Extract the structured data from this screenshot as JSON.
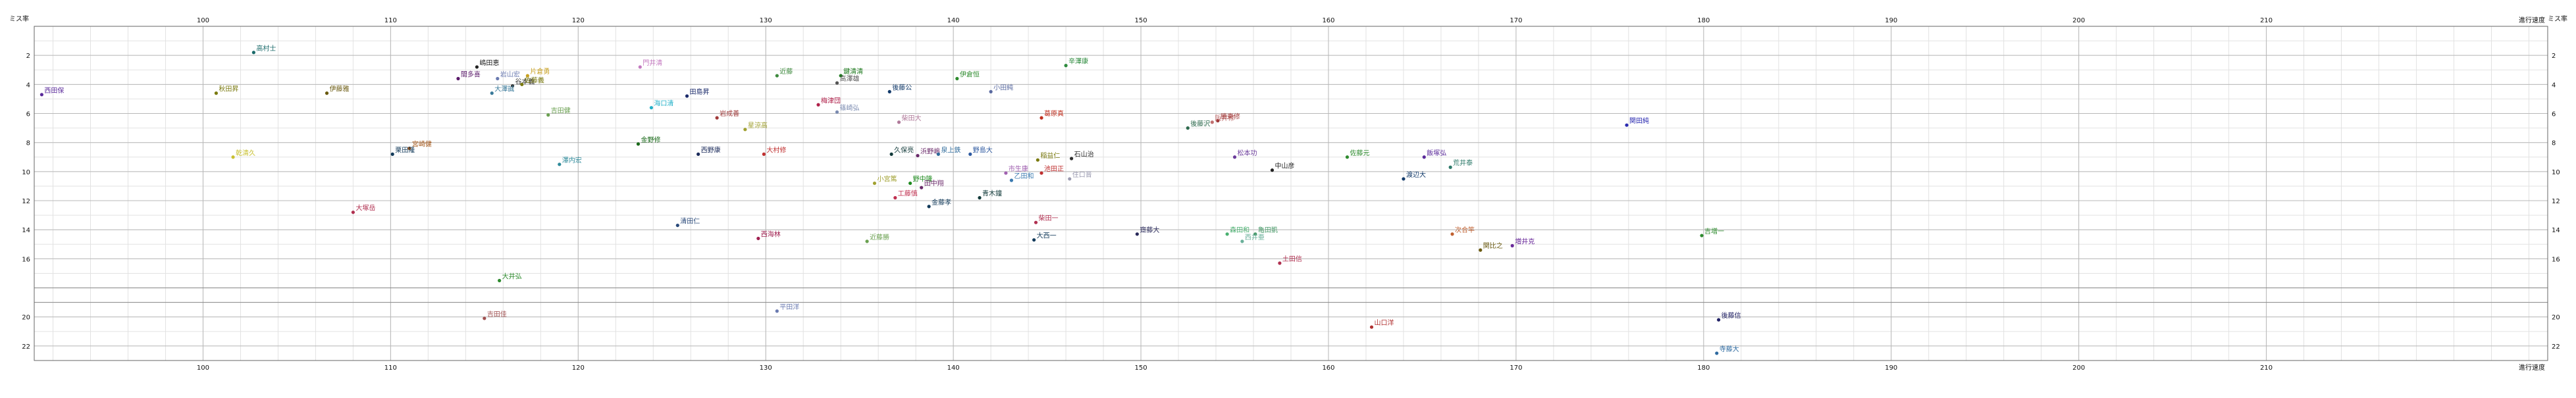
{
  "chart_data": {
    "type": "scatter",
    "x_axis_label": "進行速度",
    "y_axis_label": "ミス率",
    "xlim": [
      91,
      225
    ],
    "ylim": [
      23,
      0
    ],
    "x_ticks": [
      100,
      110,
      120,
      130,
      140,
      150,
      160,
      170,
      180,
      190,
      200,
      210
    ],
    "y_ticks": [
      2,
      4,
      6,
      8,
      10,
      12,
      14,
      16,
      20,
      22
    ],
    "y_break": {
      "lower": 16,
      "upper": 20
    },
    "x_minor_step": 2,
    "y_minor_step": 1,
    "grid": true,
    "points": [
      {
        "name": "高村士",
        "x": 102.7,
        "y": 1.8,
        "color": "#1a6a6a"
      },
      {
        "name": "嶋田恵",
        "x": 114.6,
        "y": 2.8,
        "color": "#222222"
      },
      {
        "name": "門井清",
        "x": 123.3,
        "y": 2.8,
        "color": "#c47ac0"
      },
      {
        "name": "辛澤康",
        "x": 146.0,
        "y": 2.7,
        "color": "#2e8b3e"
      },
      {
        "name": "間多喜",
        "x": 113.6,
        "y": 3.6,
        "color": "#5a1a6a"
      },
      {
        "name": "岩山宏",
        "x": 115.7,
        "y": 3.6,
        "color": "#6a7ab0"
      },
      {
        "name": "片倉勇",
        "x": 117.3,
        "y": 3.4,
        "color": "#c8a020"
      },
      {
        "name": "谷本義",
        "x": 116.5,
        "y": 4.1,
        "color": "#333333"
      },
      {
        "name": "佐藤義",
        "x": 117.0,
        "y": 4.0,
        "color": "#7a7a10"
      },
      {
        "name": "大澤誠",
        "x": 115.4,
        "y": 4.6,
        "color": "#3a7a9a"
      },
      {
        "name": "近藤",
        "x": 130.6,
        "y": 3.4,
        "color": "#3e8a3e"
      },
      {
        "name": "鍵清清",
        "x": 134.0,
        "y": 3.4,
        "color": "#1e7a1e"
      },
      {
        "name": "高澤雄",
        "x": 133.8,
        "y": 3.9,
        "color": "#555555"
      },
      {
        "name": "伊倉恒",
        "x": 140.2,
        "y": 3.6,
        "color": "#2e8b2e"
      },
      {
        "name": "後藤公",
        "x": 136.6,
        "y": 4.5,
        "color": "#123a6a"
      },
      {
        "name": "小田純",
        "x": 142.0,
        "y": 4.5,
        "color": "#5a6aa0"
      },
      {
        "name": "西田保",
        "x": 91.4,
        "y": 4.7,
        "color": "#5a2a9a"
      },
      {
        "name": "秋田昇",
        "x": 100.7,
        "y": 4.6,
        "color": "#7a7a10"
      },
      {
        "name": "伊藤雅",
        "x": 106.6,
        "y": 4.6,
        "color": "#6a5a10"
      },
      {
        "name": "田島昇",
        "x": 125.8,
        "y": 4.8,
        "color": "#1a2a6a"
      },
      {
        "name": "海口清",
        "x": 123.9,
        "y": 5.6,
        "color": "#22b0c8"
      },
      {
        "name": "梅津団",
        "x": 132.8,
        "y": 5.4,
        "color": "#b0204a"
      },
      {
        "name": "篠崎弘",
        "x": 133.8,
        "y": 5.9,
        "color": "#7a8ab0"
      },
      {
        "name": "吉田健",
        "x": 118.4,
        "y": 6.1,
        "color": "#6aa050"
      },
      {
        "name": "岩成善",
        "x": 127.4,
        "y": 6.3,
        "color": "#a03a3a"
      },
      {
        "name": "星涼高",
        "x": 128.9,
        "y": 7.1,
        "color": "#a0a030"
      },
      {
        "name": "柴田大",
        "x": 137.1,
        "y": 6.6,
        "color": "#b07a9a"
      },
      {
        "name": "葛原真",
        "x": 144.7,
        "y": 6.3,
        "color": "#c03020"
      },
      {
        "name": "後藤沢",
        "x": 152.5,
        "y": 7.0,
        "color": "#2e6a4e"
      },
      {
        "name": "阪井修",
        "x": 153.8,
        "y": 6.6,
        "color": "#c07070"
      },
      {
        "name": "勝東修",
        "x": 154.1,
        "y": 6.5,
        "color": "#a03a3a"
      },
      {
        "name": "関田純",
        "x": 175.9,
        "y": 6.8,
        "color": "#2a2ab0"
      },
      {
        "name": "宮崎健",
        "x": 111.0,
        "y": 8.4,
        "color": "#a05010"
      },
      {
        "name": "栗田隆",
        "x": 110.1,
        "y": 8.8,
        "color": "#123a5a"
      },
      {
        "name": "金野修",
        "x": 123.2,
        "y": 8.1,
        "color": "#1a6a1a"
      },
      {
        "name": "西野康",
        "x": 126.4,
        "y": 8.8,
        "color": "#1a2a5a"
      },
      {
        "name": "大村修",
        "x": 129.9,
        "y": 8.8,
        "color": "#c03030"
      },
      {
        "name": "久保亮",
        "x": 136.7,
        "y": 8.8,
        "color": "#123a3a"
      },
      {
        "name": "浜野嶋",
        "x": 138.1,
        "y": 8.9,
        "color": "#6a2a6a"
      },
      {
        "name": "泉上鉄",
        "x": 139.2,
        "y": 8.8,
        "color": "#2e6a9a"
      },
      {
        "name": "野島大",
        "x": 140.9,
        "y": 8.8,
        "color": "#2e5aa0"
      },
      {
        "name": "石山治",
        "x": 146.3,
        "y": 9.1,
        "color": "#2e2e2e"
      },
      {
        "name": "稲益仁",
        "x": 144.5,
        "y": 9.2,
        "color": "#7a7a10"
      },
      {
        "name": "松本功",
        "x": 155.0,
        "y": 9.0,
        "color": "#6a3a9a"
      },
      {
        "name": "佐藤元",
        "x": 161.0,
        "y": 9.0,
        "color": "#2e8b2e"
      },
      {
        "name": "飯塚弘",
        "x": 165.1,
        "y": 9.0,
        "color": "#5a2a9a"
      },
      {
        "name": "乾清久",
        "x": 101.6,
        "y": 9.0,
        "color": "#c8c030"
      },
      {
        "name": "澤内宏",
        "x": 119.0,
        "y": 9.5,
        "color": "#2e8a9a"
      },
      {
        "name": "市生康",
        "x": 142.8,
        "y": 10.1,
        "color": "#a060b0"
      },
      {
        "name": "池田正",
        "x": 144.7,
        "y": 10.1,
        "color": "#c03030"
      },
      {
        "name": "乙田和",
        "x": 143.1,
        "y": 10.6,
        "color": "#3a7ab0"
      },
      {
        "name": "住口晋",
        "x": 146.2,
        "y": 10.5,
        "color": "#9a9ab0"
      },
      {
        "name": "中山彦",
        "x": 157.0,
        "y": 9.9,
        "color": "#222222"
      },
      {
        "name": "渡辺大",
        "x": 164.0,
        "y": 10.5,
        "color": "#123a6a"
      },
      {
        "name": "荒井泰",
        "x": 166.5,
        "y": 9.7,
        "color": "#2e7a6a"
      },
      {
        "name": "小宮篤",
        "x": 135.8,
        "y": 10.8,
        "color": "#a0a030"
      },
      {
        "name": "野中隆",
        "x": 137.7,
        "y": 10.8,
        "color": "#1e8a1e"
      },
      {
        "name": "田中翔",
        "x": 138.3,
        "y": 11.1,
        "color": "#6a2a6a"
      },
      {
        "name": "工藤慎",
        "x": 136.9,
        "y": 11.8,
        "color": "#c03050"
      },
      {
        "name": "金藤孝",
        "x": 138.7,
        "y": 12.4,
        "color": "#123a5a"
      },
      {
        "name": "青木鐘",
        "x": 141.4,
        "y": 11.8,
        "color": "#123a3a"
      },
      {
        "name": "大塚岳",
        "x": 108.0,
        "y": 12.8,
        "color": "#b03050"
      },
      {
        "name": "清田仁",
        "x": 125.3,
        "y": 13.7,
        "color": "#2a4a7a"
      },
      {
        "name": "柴田一",
        "x": 144.4,
        "y": 13.5,
        "color": "#b03050"
      },
      {
        "name": "大西一",
        "x": 144.3,
        "y": 14.7,
        "color": "#123a5a"
      },
      {
        "name": "西海林",
        "x": 129.6,
        "y": 14.6,
        "color": "#a02050"
      },
      {
        "name": "近藤勝",
        "x": 135.4,
        "y": 14.8,
        "color": "#6aa050"
      },
      {
        "name": "齋藤大",
        "x": 149.8,
        "y": 14.3,
        "color": "#2a2a5a"
      },
      {
        "name": "森田和",
        "x": 154.6,
        "y": 14.3,
        "color": "#4ab070"
      },
      {
        "name": "亀田凱",
        "x": 156.1,
        "y": 14.3,
        "color": "#4a9a6a"
      },
      {
        "name": "西井亜",
        "x": 155.4,
        "y": 14.8,
        "color": "#6ab09a"
      },
      {
        "name": "次合竿",
        "x": 166.6,
        "y": 14.3,
        "color": "#c06030"
      },
      {
        "name": "増井克",
        "x": 169.8,
        "y": 15.1,
        "color": "#6a2a9a"
      },
      {
        "name": "関比之",
        "x": 168.1,
        "y": 15.4,
        "color": "#6a5a10"
      },
      {
        "name": "吉増一",
        "x": 179.9,
        "y": 14.4,
        "color": "#2e8b2e"
      },
      {
        "name": "土田信",
        "x": 157.4,
        "y": 16.3,
        "color": "#b03050"
      },
      {
        "name": "大井弘",
        "x": 115.8,
        "y": 17.5,
        "color": "#2e8b2e"
      },
      {
        "name": "平田洋",
        "x": 130.6,
        "y": 19.6,
        "color": "#6a7ab0"
      },
      {
        "name": "吉田佳",
        "x": 115.0,
        "y": 20.1,
        "color": "#a05050"
      },
      {
        "name": "山口洋",
        "x": 162.3,
        "y": 20.7,
        "color": "#b03030"
      },
      {
        "name": "後藤信",
        "x": 180.8,
        "y": 20.2,
        "color": "#222266"
      },
      {
        "name": "寺藤大",
        "x": 180.7,
        "y": 22.5,
        "color": "#2e6aa0"
      }
    ]
  }
}
